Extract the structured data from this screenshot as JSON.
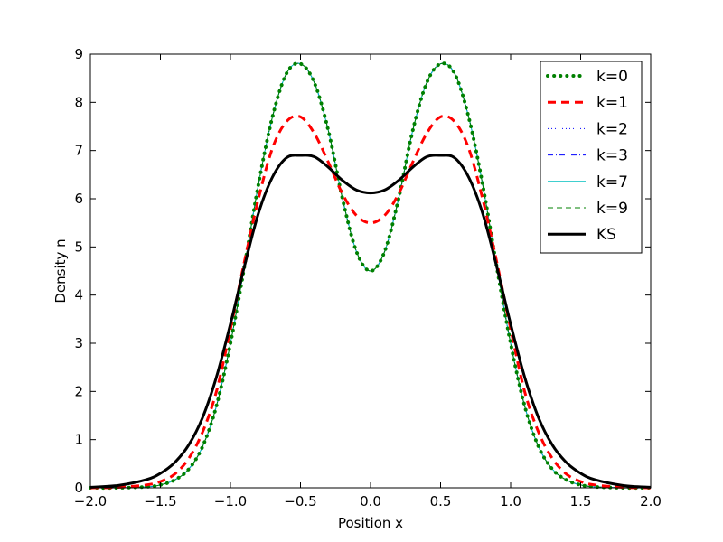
{
  "chart_data": {
    "type": "line",
    "xlabel": "Position x",
    "ylabel": "Density n",
    "xlim": [
      -2.0,
      2.0
    ],
    "ylim": [
      0,
      9
    ],
    "xticks": [
      "−2.0",
      "−1.5",
      "−1.0",
      "−0.5",
      "0.0",
      "0.5",
      "1.0",
      "1.5",
      "2.0"
    ],
    "xtick_values": [
      -2.0,
      -1.5,
      -1.0,
      -0.5,
      0.0,
      0.5,
      1.0,
      1.5,
      2.0
    ],
    "yticks": [
      "0",
      "1",
      "2",
      "3",
      "4",
      "5",
      "6",
      "7",
      "8",
      "9"
    ],
    "ytick_values": [
      0,
      1,
      2,
      3,
      4,
      5,
      6,
      7,
      8,
      9
    ],
    "grid": false,
    "legend_position": "top-right",
    "x": [
      -2.0,
      -1.8,
      -1.6,
      -1.5,
      -1.4,
      -1.3,
      -1.2,
      -1.1,
      -1.0,
      -0.9,
      -0.8,
      -0.7,
      -0.6,
      -0.5,
      -0.4,
      -0.3,
      -0.2,
      -0.1,
      0.0,
      0.1,
      0.2,
      0.3,
      0.4,
      0.5,
      0.6,
      0.7,
      0.8,
      0.9,
      1.0,
      1.1,
      1.2,
      1.3,
      1.4,
      1.5,
      1.6,
      1.8,
      2.0
    ],
    "series": [
      {
        "name": "k=0",
        "color": "#008000",
        "style": "dotted-markers",
        "values": [
          0.0,
          0.0,
          0.02,
          0.06,
          0.16,
          0.38,
          0.85,
          1.7,
          3.0,
          4.6,
          6.3,
          7.7,
          8.6,
          8.8,
          8.4,
          7.4,
          6.0,
          4.9,
          4.5,
          4.9,
          6.0,
          7.4,
          8.4,
          8.8,
          8.6,
          7.7,
          6.3,
          4.6,
          3.0,
          1.7,
          0.85,
          0.38,
          0.16,
          0.06,
          0.02,
          0.0,
          0.0
        ]
      },
      {
        "name": "k=1",
        "color": "#ff0000",
        "style": "dashed",
        "values": [
          0.0,
          0.01,
          0.06,
          0.13,
          0.28,
          0.6,
          1.15,
          2.0,
          3.3,
          4.7,
          6.0,
          7.05,
          7.6,
          7.7,
          7.35,
          6.75,
          6.1,
          5.65,
          5.5,
          5.65,
          6.1,
          6.75,
          7.35,
          7.7,
          7.6,
          7.05,
          6.0,
          4.7,
          3.3,
          2.0,
          1.15,
          0.6,
          0.28,
          0.13,
          0.06,
          0.01,
          0.0
        ]
      },
      {
        "name": "k=2",
        "color": "#0000ff",
        "style": "dotted",
        "values": [
          0.0,
          0.0,
          0.02,
          0.06,
          0.16,
          0.38,
          0.85,
          1.7,
          3.0,
          4.6,
          6.3,
          7.7,
          8.6,
          8.8,
          8.4,
          7.4,
          6.0,
          4.9,
          4.5,
          4.9,
          6.0,
          7.4,
          8.4,
          8.8,
          8.6,
          7.7,
          6.3,
          4.6,
          3.0,
          1.7,
          0.85,
          0.38,
          0.16,
          0.06,
          0.02,
          0.0,
          0.0
        ]
      },
      {
        "name": "k=3",
        "color": "#0000ff",
        "style": "dashdot",
        "values": [
          0.0,
          0.0,
          0.02,
          0.06,
          0.16,
          0.38,
          0.85,
          1.7,
          3.0,
          4.6,
          6.3,
          7.7,
          8.6,
          8.8,
          8.4,
          7.4,
          6.0,
          4.9,
          4.5,
          4.9,
          6.0,
          7.4,
          8.4,
          8.8,
          8.6,
          7.7,
          6.3,
          4.6,
          3.0,
          1.7,
          0.85,
          0.38,
          0.16,
          0.06,
          0.02,
          0.0,
          0.0
        ]
      },
      {
        "name": "k=7",
        "color": "#00bfbf",
        "style": "solid-thin",
        "values": [
          0.0,
          0.0,
          0.02,
          0.06,
          0.16,
          0.38,
          0.85,
          1.7,
          3.0,
          4.6,
          6.3,
          7.7,
          8.6,
          8.8,
          8.4,
          7.4,
          6.0,
          4.9,
          4.5,
          4.9,
          6.0,
          7.4,
          8.4,
          8.8,
          8.6,
          7.7,
          6.3,
          4.6,
          3.0,
          1.7,
          0.85,
          0.38,
          0.16,
          0.06,
          0.02,
          0.0,
          0.0
        ]
      },
      {
        "name": "k=9",
        "color": "#008000",
        "style": "dashed-thin",
        "values": [
          0.0,
          0.0,
          0.02,
          0.06,
          0.16,
          0.38,
          0.85,
          1.7,
          3.0,
          4.6,
          6.3,
          7.7,
          8.6,
          8.8,
          8.4,
          7.4,
          6.0,
          4.9,
          4.5,
          4.9,
          6.0,
          7.4,
          8.4,
          8.8,
          8.6,
          7.7,
          6.3,
          4.6,
          3.0,
          1.7,
          0.85,
          0.38,
          0.16,
          0.06,
          0.02,
          0.0,
          0.0
        ]
      },
      {
        "name": "KS",
        "color": "#000000",
        "style": "solid-thick",
        "values": [
          0.01,
          0.05,
          0.17,
          0.3,
          0.52,
          0.88,
          1.45,
          2.3,
          3.4,
          4.6,
          5.7,
          6.45,
          6.85,
          6.9,
          6.87,
          6.65,
          6.38,
          6.18,
          6.12,
          6.18,
          6.38,
          6.65,
          6.87,
          6.9,
          6.85,
          6.45,
          5.7,
          4.6,
          3.4,
          2.3,
          1.45,
          0.88,
          0.52,
          0.3,
          0.17,
          0.05,
          0.01
        ]
      }
    ]
  }
}
